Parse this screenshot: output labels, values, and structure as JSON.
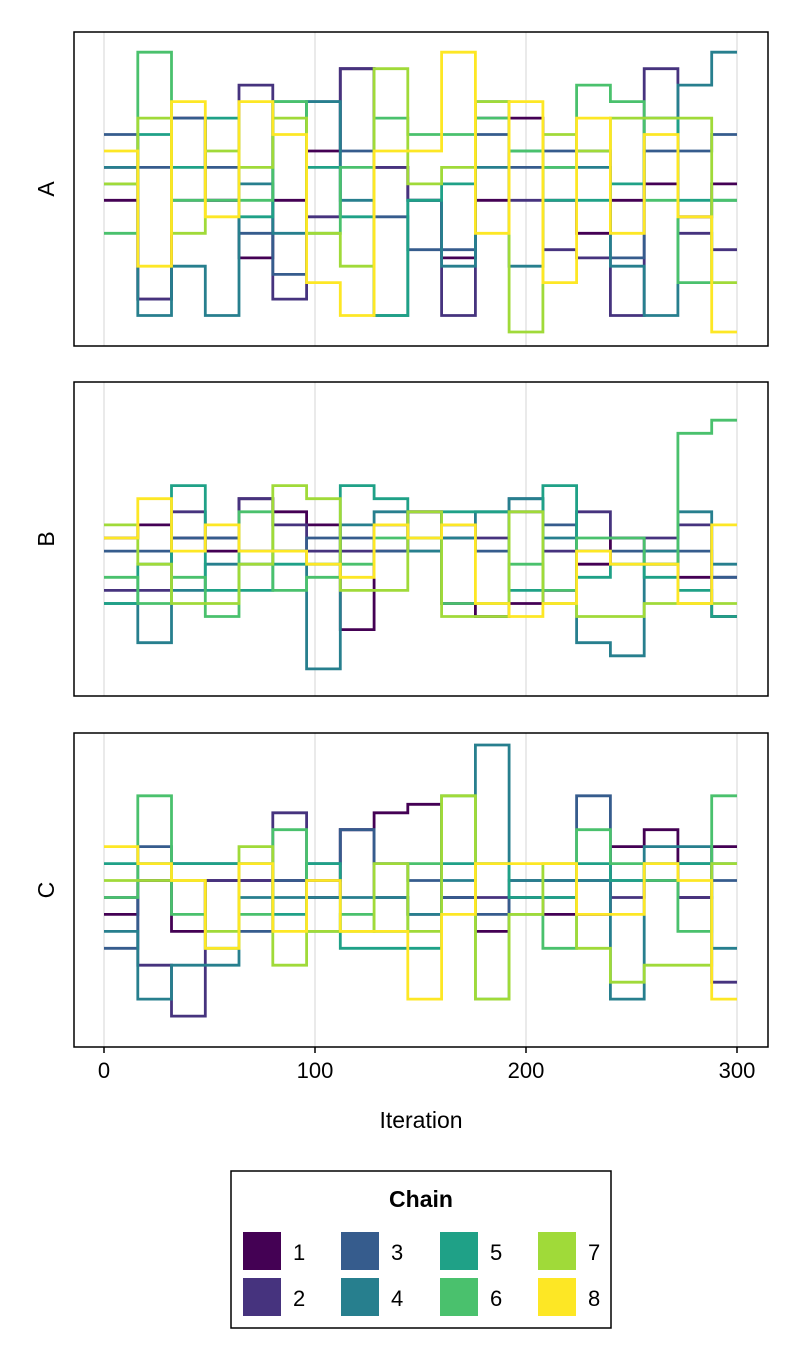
{
  "chart_data": {
    "type": "line",
    "subtype": "step-trace",
    "xlabel": "Iteration",
    "xlim": [
      0,
      300
    ],
    "xticks": [
      0,
      100,
      200,
      300
    ],
    "xtick_labels": [
      "0",
      "100",
      "200",
      "300"
    ],
    "grid": true,
    "y_tick_labels_shown": false,
    "x": [
      0,
      16,
      32,
      48,
      64,
      80,
      96,
      112,
      128,
      144,
      160,
      176,
      192,
      208,
      224,
      240,
      256,
      272,
      288
    ],
    "chain_colors": [
      "#440154",
      "#46337E",
      "#365C8D",
      "#277F8E",
      "#1FA187",
      "#4AC16D",
      "#A0DA39",
      "#FDE725"
    ],
    "legend": {
      "title": "Chain",
      "placement": "bottom-center",
      "entries": [
        "1",
        "2",
        "3",
        "4",
        "5",
        "6",
        "7",
        "8"
      ]
    },
    "panels": [
      {
        "ylabel": "A",
        "ylim": [
          -1,
          16.5
        ],
        "series": [
          {
            "name": "1",
            "values": [
              7,
              1,
              12,
              7,
              3.5,
              7,
              10,
              15,
              9,
              7,
              3.5,
              7,
              12,
              7,
              5,
              7,
              8,
              6,
              8
            ]
          },
          {
            "name": "2",
            "values": [
              9,
              1,
              7,
              7,
              14,
              1,
              6,
              15,
              9,
              7,
              0,
              12,
              7,
              4,
              3.5,
              0,
              15,
              5,
              4
            ]
          },
          {
            "name": "3",
            "values": [
              11,
              9,
              12,
              9,
              5,
              2.5,
              13,
              10,
              6,
              4,
              4,
              11,
              9,
              10,
              10,
              3.5,
              10,
              10,
              11
            ]
          },
          {
            "name": "4",
            "values": [
              9,
              0,
              3,
              0,
              8,
              5,
              13,
              7,
              0,
              7,
              3,
              9,
              3,
              9,
              9,
              3,
              0,
              14,
              16
            ]
          },
          {
            "name": "5",
            "values": [
              8,
              11,
              9,
              12,
              6,
              13,
              9,
              6,
              0,
              7,
              8,
              13,
              10,
              7,
              7,
              8,
              12,
              7,
              7
            ]
          },
          {
            "name": "6",
            "values": [
              5,
              16,
              7,
              7,
              7,
              13,
              5,
              9,
              12,
              11,
              11,
              12,
              10,
              9,
              14,
              13,
              7,
              2,
              7
            ]
          },
          {
            "name": "7",
            "values": [
              8,
              12,
              5,
              10,
              9,
              12,
              5,
              3,
              15,
              8,
              9,
              13,
              -1,
              11,
              10,
              12,
              12,
              12,
              2
            ]
          },
          {
            "name": "8",
            "values": [
              10,
              3,
              13,
              6,
              13,
              11,
              2,
              0,
              10,
              10,
              16,
              5,
              13,
              2,
              12,
              5,
              11,
              6,
              -1
            ]
          }
        ]
      },
      {
        "ylabel": "B",
        "ylim": [
          -2,
          20
        ],
        "series": [
          {
            "name": "1",
            "values": [
              9,
              10,
              9,
              8,
              12,
              11,
              10,
              2,
              8,
              11,
              4,
              3,
              4,
              5,
              7,
              9,
              8,
              6,
              3
            ]
          },
          {
            "name": "2",
            "values": [
              5,
              5,
              11,
              9,
              12,
              10,
              8,
              8,
              10,
              11,
              9,
              9,
              11,
              8,
              11,
              9,
              9,
              10,
              6
            ]
          },
          {
            "name": "3",
            "values": [
              8,
              8,
              9,
              9,
              8,
              8,
              9,
              9,
              8,
              8,
              10,
              8,
              12,
              10,
              8,
              8,
              7,
              8,
              6
            ]
          },
          {
            "name": "4",
            "values": [
              4,
              1,
              5,
              7,
              7,
              8,
              -1,
              10,
              11,
              8,
              9,
              11,
              12,
              9,
              1,
              0,
              8,
              11,
              7
            ]
          },
          {
            "name": "5",
            "values": [
              4,
              7,
              13,
              5,
              5,
              7,
              7,
              13,
              12,
              9,
              11,
              11,
              5,
              13,
              6,
              7,
              6,
              5,
              3
            ]
          },
          {
            "name": "6",
            "values": [
              6,
              4,
              6,
              3,
              11,
              5,
              6,
              7,
              9,
              9,
              4,
              4,
              7,
              5,
              9,
              9,
              7,
              17,
              18
            ]
          },
          {
            "name": "7",
            "values": [
              10,
              7,
              4,
              4,
              7,
              13,
              12,
              5,
              5,
              11,
              3,
              3,
              11,
              4,
              3,
              3,
              4,
              4,
              4
            ]
          },
          {
            "name": "8",
            "values": [
              9,
              12,
              8,
              10,
              8,
              8,
              7,
              6,
              10,
              9,
              10,
              4,
              3,
              4,
              8,
              7,
              7,
              4,
              10
            ]
          }
        ]
      },
      {
        "ylabel": "C",
        "ylim": [
          -1,
          16
        ],
        "series": [
          {
            "name": "1",
            "values": [
              6,
              8,
              5,
              8,
              8,
              8,
              7,
              11,
              12,
              12.5,
              7,
              5,
              7,
              6,
              6,
              10,
              11,
              7,
              10
            ]
          },
          {
            "name": "2",
            "values": [
              7,
              3,
              0,
              8,
              8,
              12,
              8,
              11,
              7,
              6,
              7,
              7,
              8,
              8,
              8,
              7,
              8,
              7,
              2
            ]
          },
          {
            "name": "3",
            "values": [
              4,
              10,
              9,
              9,
              5,
              8,
              9,
              11,
              9,
              8,
              7,
              6,
              7,
              7,
              13,
              8,
              8,
              9,
              8
            ]
          },
          {
            "name": "4",
            "values": [
              5,
              1,
              3,
              3,
              7,
              7,
              7,
              7,
              7,
              6,
              8,
              16,
              8,
              8,
              8,
              1,
              10,
              10,
              4
            ]
          },
          {
            "name": "5",
            "values": [
              9,
              9,
              9,
              9,
              9,
              6,
              9,
              4,
              4,
              4,
              9,
              9,
              7,
              7,
              9,
              8,
              9,
              9,
              9
            ]
          },
          {
            "name": "6",
            "values": [
              7,
              13,
              6,
              4,
              6,
              11,
              5,
              6,
              5,
              9,
              13,
              1,
              6,
              4,
              11,
              9,
              8,
              5,
              13
            ]
          },
          {
            "name": "7",
            "values": [
              8,
              8,
              8,
              5,
              10,
              3,
              5,
              5,
              9,
              5,
              13,
              1,
              6,
              9,
              4,
              2,
              3,
              3,
              9
            ]
          },
          {
            "name": "8",
            "values": [
              10,
              9,
              8,
              4,
              9,
              5,
              8,
              5,
              5,
              1,
              6,
              9,
              9,
              9,
              6,
              6,
              9,
              8,
              1
            ]
          }
        ]
      }
    ]
  }
}
